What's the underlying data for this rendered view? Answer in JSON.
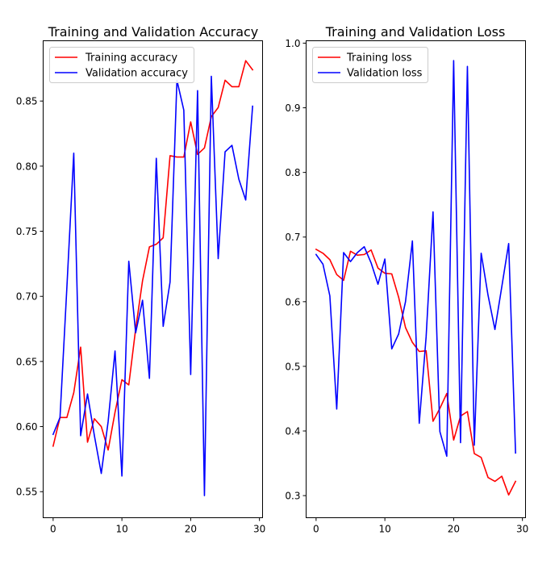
{
  "chart_data": [
    {
      "type": "line",
      "title": "Training and Validation Accuracy",
      "xlabel": "",
      "ylabel": "",
      "xlim": [
        -1.45,
        30.45
      ],
      "ylim": [
        0.53,
        0.8963
      ],
      "xticks": [
        0,
        10,
        20,
        30
      ],
      "yticks": [
        0.55,
        0.6,
        0.65,
        0.7,
        0.75,
        0.8,
        0.85
      ],
      "ytick_labels": [
        "0.55",
        "0.60",
        "0.65",
        "0.70",
        "0.75",
        "0.80",
        "0.85"
      ],
      "legend_position": "upper-left",
      "grid": false,
      "x": [
        0,
        1,
        2,
        3,
        4,
        5,
        6,
        7,
        8,
        9,
        10,
        11,
        12,
        13,
        14,
        15,
        16,
        17,
        18,
        19,
        20,
        21,
        22,
        23,
        24,
        25,
        26,
        27,
        28,
        29
      ],
      "series": [
        {
          "name": "Training accuracy",
          "color": "#ff0000",
          "values": [
            0.585,
            0.607,
            0.607,
            0.626,
            0.661,
            0.588,
            0.606,
            0.6,
            0.582,
            0.611,
            0.636,
            0.632,
            0.675,
            0.712,
            0.738,
            0.74,
            0.745,
            0.808,
            0.807,
            0.807,
            0.834,
            0.809,
            0.814,
            0.838,
            0.845,
            0.866,
            0.861,
            0.861,
            0.881,
            0.874
          ]
        },
        {
          "name": "Validation accuracy",
          "color": "#0000ff",
          "values": [
            0.594,
            0.607,
            0.707,
            0.81,
            0.593,
            0.625,
            0.593,
            0.564,
            0.604,
            0.658,
            0.562,
            0.727,
            0.672,
            0.697,
            0.637,
            0.806,
            0.677,
            0.711,
            0.866,
            0.843,
            0.64,
            0.858,
            0.547,
            0.869,
            0.729,
            0.811,
            0.816,
            0.79,
            0.774,
            0.846
          ]
        }
      ]
    },
    {
      "type": "line",
      "title": "Training and Validation Loss",
      "xlabel": "",
      "ylabel": "",
      "xlim": [
        -1.45,
        30.45
      ],
      "ylim": [
        0.2658,
        1.0037
      ],
      "xticks": [
        0,
        10,
        20,
        30
      ],
      "yticks": [
        0.3,
        0.4,
        0.5,
        0.6,
        0.7,
        0.8,
        0.9,
        1.0
      ],
      "ytick_labels": [
        "0.3",
        "0.4",
        "0.5",
        "0.6",
        "0.7",
        "0.8",
        "0.9",
        "1.0"
      ],
      "legend_position": "upper-left",
      "grid": false,
      "x": [
        0,
        1,
        2,
        3,
        4,
        5,
        6,
        7,
        8,
        9,
        10,
        11,
        12,
        13,
        14,
        15,
        16,
        17,
        18,
        19,
        20,
        21,
        22,
        23,
        24,
        25,
        26,
        27,
        28,
        29
      ],
      "series": [
        {
          "name": "Training loss",
          "color": "#ff0000",
          "values": [
            0.681,
            0.675,
            0.665,
            0.642,
            0.633,
            0.678,
            0.672,
            0.673,
            0.68,
            0.652,
            0.644,
            0.643,
            0.607,
            0.56,
            0.537,
            0.523,
            0.524,
            0.415,
            0.435,
            0.458,
            0.386,
            0.423,
            0.43,
            0.365,
            0.359,
            0.328,
            0.322,
            0.33,
            0.301,
            0.322
          ]
        },
        {
          "name": "Validation loss",
          "color": "#0000ff",
          "values": [
            0.673,
            0.658,
            0.609,
            0.434,
            0.676,
            0.662,
            0.676,
            0.685,
            0.66,
            0.627,
            0.666,
            0.527,
            0.55,
            0.6,
            0.694,
            0.412,
            0.546,
            0.739,
            0.399,
            0.361,
            0.973,
            0.382,
            0.964,
            0.378,
            0.675,
            0.61,
            0.557,
            0.623,
            0.69,
            0.366
          ]
        }
      ]
    }
  ]
}
